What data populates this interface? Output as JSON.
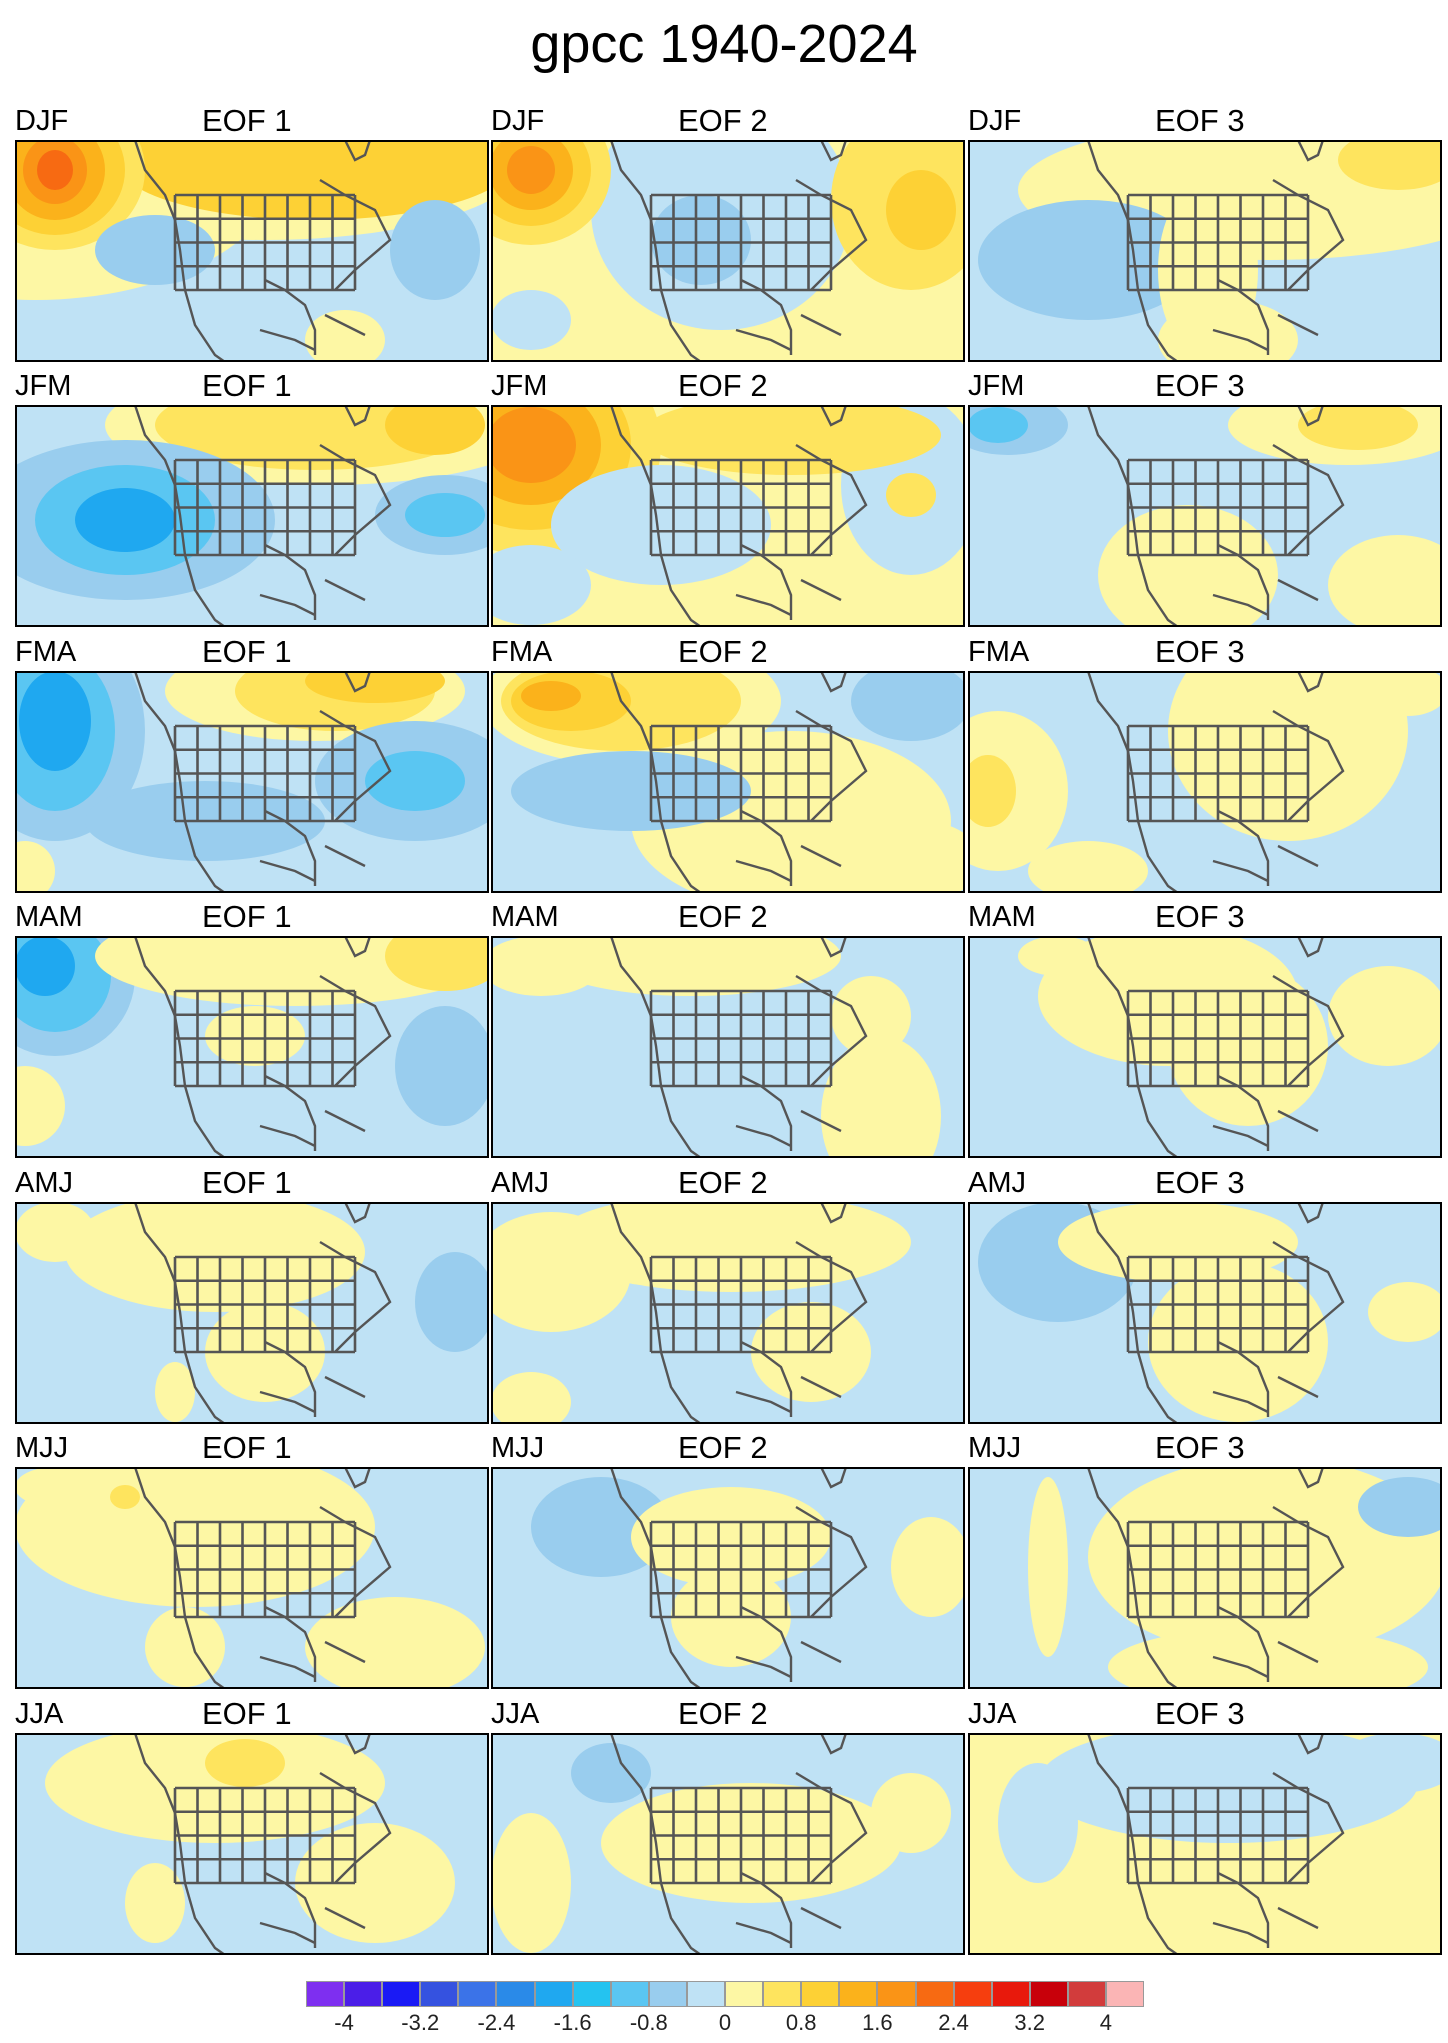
{
  "title": "gpcc 1940-2024",
  "rows": [
    {
      "season": "DJF",
      "eofs": [
        "EOF 1",
        "EOF 2",
        "EOF 3"
      ]
    },
    {
      "season": "JFM",
      "eofs": [
        "EOF 1",
        "EOF 2",
        "EOF 3"
      ]
    },
    {
      "season": "FMA",
      "eofs": [
        "EOF 1",
        "EOF 2",
        "EOF 3"
      ]
    },
    {
      "season": "MAM",
      "eofs": [
        "EOF 1",
        "EOF 2",
        "EOF 3"
      ]
    },
    {
      "season": "AMJ",
      "eofs": [
        "EOF 1",
        "EOF 2",
        "EOF 3"
      ]
    },
    {
      "season": "MJJ",
      "eofs": [
        "EOF 1",
        "EOF 2",
        "EOF 3"
      ]
    },
    {
      "season": "JJA",
      "eofs": [
        "EOF 1",
        "EOF 2",
        "EOF 3"
      ]
    }
  ],
  "colorbar": {
    "colors": [
      "#7e2ff0",
      "#4b1ee8",
      "#1a1af5",
      "#3552e0",
      "#3b73e8",
      "#2a8ae8",
      "#1fa8f0",
      "#24c3f0",
      "#5ac6f2",
      "#99cdee",
      "#bfe2f5",
      "#fdf7a4",
      "#fee45e",
      "#fdd135",
      "#fbb21b",
      "#fa9416",
      "#f76a12",
      "#f63e0e",
      "#e8190c",
      "#c8000a",
      "#d23c3c",
      "#fbb5b5"
    ],
    "tick_labels": [
      "-4",
      "-3.2",
      "-2.4",
      "-1.6",
      "-0.8",
      "0",
      "0.8",
      "1.6",
      "2.4",
      "3.2",
      "4"
    ]
  },
  "map_colors": {
    "light_blue": "#bfe2f5",
    "mid_blue": "#99cdee",
    "blue": "#5ac6f2",
    "strong_blue": "#24c3f0",
    "deep_blue": "#1fa8f0",
    "light_yellow": "#fdf7a4",
    "yellow": "#fee45e",
    "gold": "#fdd135",
    "orange": "#fbb21b",
    "dark_orange": "#fa9416",
    "red_orange": "#f76a12",
    "outline": "#555555"
  }
}
